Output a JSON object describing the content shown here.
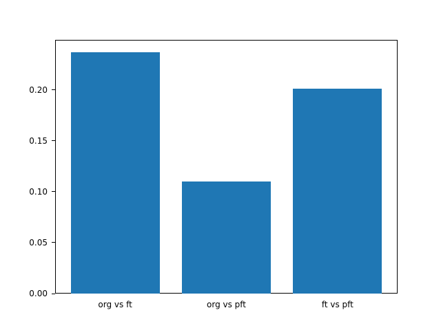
{
  "chart_data": {
    "type": "bar",
    "title": "",
    "xlabel": "",
    "ylabel": "",
    "categories": [
      "org vs ft",
      "org vs pft",
      "ft vs pft"
    ],
    "values": [
      0.237,
      0.11,
      0.201
    ],
    "ylim": [
      0,
      0.249
    ],
    "yticks": [
      0.0,
      0.05,
      0.1,
      0.15,
      0.2
    ],
    "ytick_labels": [
      "0.00",
      "0.05",
      "0.10",
      "0.15",
      "0.20"
    ],
    "bar_color": "#1f77b4",
    "axis_color": "#000000",
    "background_color": "#ffffff",
    "grid": false,
    "legend": false
  }
}
